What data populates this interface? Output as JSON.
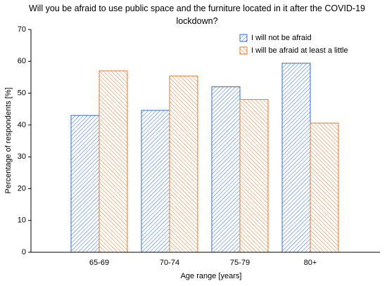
{
  "chart_data": {
    "type": "bar",
    "title": "Will you be afraid to use public space and the furniture located in it after the COVID-19 lockdown?",
    "x_label": "Age range [years]",
    "y_label": "Percentage of respondents [%]",
    "categories": [
      "65-69",
      "70-74",
      "75-79",
      "80+"
    ],
    "series": [
      {
        "name": "I will not be afraid",
        "color": "#2f6fd6",
        "values": [
          43,
          44.6,
          52,
          59.4
        ]
      },
      {
        "name": "I will be afraid at least a little",
        "color": "#e07a2c",
        "values": [
          57,
          55.4,
          48,
          40.6
        ]
      }
    ],
    "ylim": [
      0,
      70
    ],
    "yticks": [
      0,
      10,
      20,
      30,
      40,
      50,
      60,
      70
    ],
    "hatch": true,
    "legend": "upper right"
  }
}
